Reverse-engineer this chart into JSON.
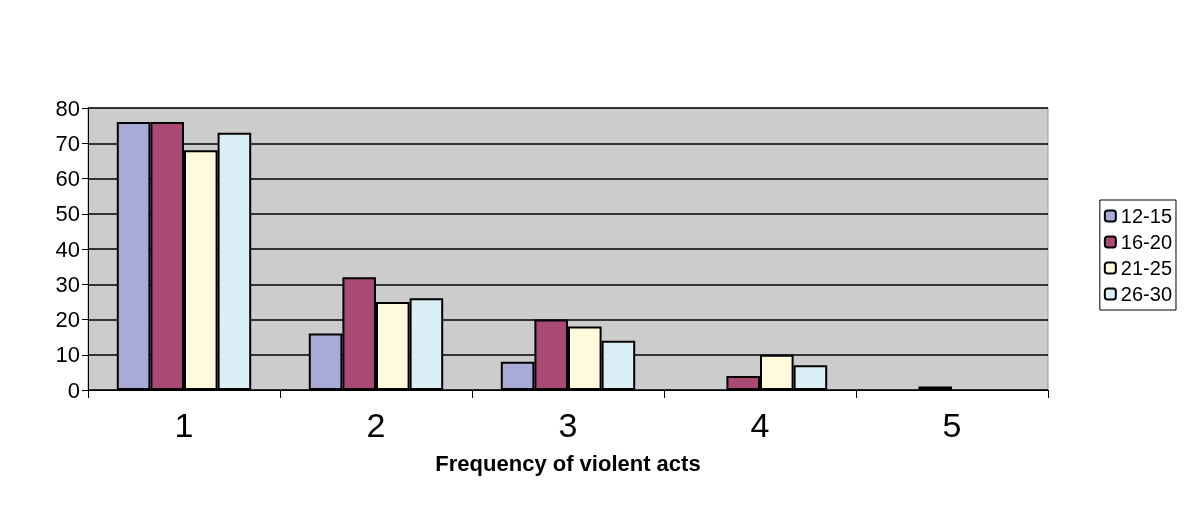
{
  "chart_data": {
    "type": "bar",
    "xlabel": "Frequency of violent acts",
    "categories": [
      "1",
      "2",
      "3",
      "4",
      "5"
    ],
    "series": [
      {
        "name": "12-15",
        "color": "#aaaad6",
        "values": [
          76,
          16,
          8,
          null,
          null
        ]
      },
      {
        "name": "16-20",
        "color": "#a94a74",
        "values": [
          76,
          32,
          20,
          4,
          1
        ]
      },
      {
        "name": "21-25",
        "color": "#fefadb",
        "values": [
          68,
          25,
          18,
          10,
          null
        ]
      },
      {
        "name": "26-30",
        "color": "#daeef5",
        "values": [
          73,
          26,
          14,
          7,
          null
        ]
      }
    ],
    "ylim": [
      0,
      80
    ],
    "yticks": [
      0,
      10,
      20,
      30,
      40,
      50,
      60,
      70,
      80
    ],
    "grid": "y",
    "legend": "right"
  }
}
